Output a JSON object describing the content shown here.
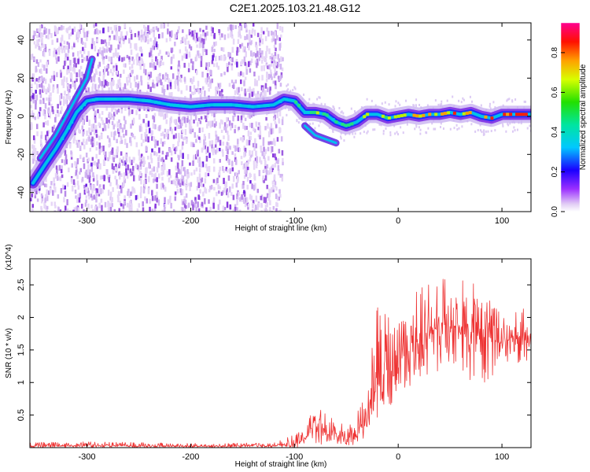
{
  "title": "C2E1.2025.103.21.48.G12",
  "chart_data": [
    {
      "type": "heatmap",
      "xlabel": "Height of straight line (km)",
      "ylabel": "Frequency (Hz)",
      "xlim": [
        -355,
        128
      ],
      "ylim": [
        -50,
        49
      ],
      "x_ticks": [
        -300,
        -200,
        -100,
        0,
        100
      ],
      "y_ticks": [
        -40,
        -20,
        0,
        20,
        40
      ],
      "colorbar": {
        "label": "Normalized spectral amplitude",
        "range": [
          0,
          0.95
        ],
        "ticks": [
          0.0,
          0.2,
          0.4,
          0.6,
          0.8
        ],
        "colormap": "rainbow: white, violet, blue, cyan, green, yellow, orange, red, magenta"
      },
      "grid": false,
      "ridge": {
        "description": "dominant frequency track",
        "x": [
          -352,
          -340,
          -330,
          -320,
          -310,
          -300,
          -290,
          -280,
          -260,
          -240,
          -220,
          -200,
          -180,
          -160,
          -140,
          -120,
          -110,
          -100,
          -90,
          -80,
          -70,
          -60,
          -50,
          -40,
          -30,
          -20,
          -10,
          0,
          10,
          20,
          30,
          40,
          50,
          60,
          70,
          80,
          90,
          100,
          110,
          120,
          128
        ],
        "y": [
          -35,
          -25,
          -17,
          -8,
          2,
          8,
          9,
          9,
          9,
          8,
          6,
          5,
          6,
          6,
          5,
          6,
          9,
          8,
          2,
          2,
          1,
          -3,
          -5,
          -3,
          1,
          1,
          -1,
          0,
          1,
          0,
          1,
          1,
          2,
          1,
          2,
          0,
          -1,
          1,
          1,
          1,
          1
        ]
      },
      "secondary_tracks": [
        {
          "x": [
            -345,
            -330,
            -315,
            -300,
            -295
          ],
          "y": [
            -22,
            -10,
            5,
            20,
            30
          ]
        },
        {
          "x": [
            -90,
            -80,
            -70,
            -60
          ],
          "y": [
            -5,
            -10,
            -12,
            -14
          ]
        }
      ]
    },
    {
      "type": "line",
      "xlabel": "Height of straight line (km)",
      "ylabel": "SNR (10 * v/v)",
      "y_multiplier": "(x10^4)",
      "xlim": [
        -355,
        128
      ],
      "ylim": [
        0,
        2.9
      ],
      "x_ticks": [
        -300,
        -200,
        -100,
        0,
        100
      ],
      "y_ticks": [
        0.5,
        1.0,
        1.5,
        2.0,
        2.5
      ],
      "grid": false,
      "series": [
        {
          "color": "#ee3333",
          "x": [
            -355,
            -300,
            -200,
            -120,
            -100,
            -90,
            -80,
            -70,
            -60,
            -50,
            -40,
            -30,
            -25,
            -20,
            -10,
            0,
            10,
            20,
            30,
            40,
            50,
            60,
            70,
            80,
            90,
            100,
            110,
            120,
            128
          ],
          "y": [
            0.03,
            0.03,
            0.02,
            0.03,
            0.05,
            0.15,
            0.3,
            0.25,
            0.2,
            0.15,
            0.2,
            0.35,
            0.7,
            1.0,
            1.15,
            1.3,
            1.5,
            1.65,
            1.75,
            1.85,
            1.9,
            1.85,
            1.8,
            1.75,
            1.65,
            1.6,
            1.7,
            1.7,
            1.55
          ],
          "upper_envelope": [
            0.08,
            0.09,
            0.07,
            0.07,
            0.2,
            0.4,
            0.65,
            0.55,
            0.45,
            0.4,
            0.55,
            0.9,
            1.8,
            2.2,
            2.1,
            2.2,
            2.35,
            2.45,
            2.55,
            2.6,
            2.6,
            2.55,
            2.9,
            2.4,
            2.25,
            2.05,
            2.1,
            2.2,
            2.1
          ],
          "lower_envelope": [
            0.0,
            0.0,
            0.0,
            0.0,
            0.0,
            0.02,
            0.05,
            0.05,
            0.05,
            0.03,
            0.05,
            0.1,
            0.25,
            0.45,
            0.6,
            0.75,
            0.9,
            1.0,
            1.05,
            1.05,
            1.1,
            1.05,
            1.0,
            0.95,
            1.0,
            1.2,
            1.3,
            1.25,
            1.15
          ]
        }
      ]
    }
  ]
}
